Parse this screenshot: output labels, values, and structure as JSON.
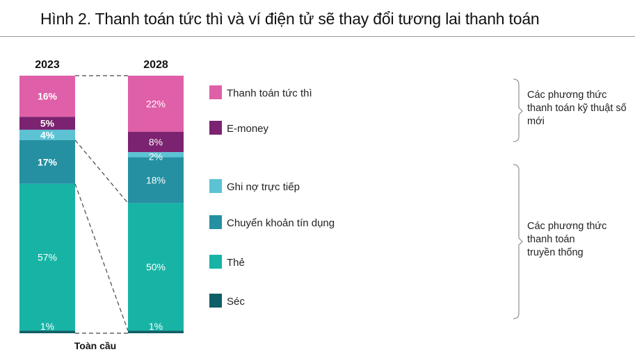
{
  "title": "Hình 2. Thanh toán tức thì và ví điện tử sẽ thay đổi tương lai thanh toán",
  "chart_data": {
    "type": "bar",
    "stacked": true,
    "categories": [
      "2023",
      "2028"
    ],
    "xlabel": "Toàn cầu",
    "series": [
      {
        "name": "Thanh toán tức thì",
        "values": [
          16,
          22
        ],
        "color": "#e05fa9"
      },
      {
        "name": "E-money",
        "values": [
          5,
          8
        ],
        "color": "#7b2270"
      },
      {
        "name": "Ghi nợ trực tiếp",
        "values": [
          4,
          2
        ],
        "color": "#5bc3d4"
      },
      {
        "name": "Chuyển khoản tín dụng",
        "values": [
          17,
          18
        ],
        "color": "#2590a2"
      },
      {
        "name": "Thẻ",
        "values": [
          57,
          50
        ],
        "color": "#17b4a6"
      },
      {
        "name": "Séc",
        "values": [
          1,
          1
        ],
        "color": "#0e5f66"
      }
    ],
    "data_labels": [
      [
        "16%",
        "5%",
        "4%",
        "17%",
        "57%",
        "1%"
      ],
      [
        "22%",
        "8%",
        "2%",
        "18%",
        "50%",
        "1%"
      ]
    ],
    "groups": [
      {
        "label_lines": [
          "Các phương thức",
          "thanh toán kỹ thuật số",
          "mới"
        ],
        "members": [
          "Thanh toán tức thì",
          "E-money"
        ]
      },
      {
        "label_lines": [
          "Các phương thức",
          "thanh toán",
          "truyền thống"
        ],
        "members": [
          "Ghi nợ trực tiếp",
          "Chuyển khoản tín dụng",
          "Thẻ",
          "Séc"
        ]
      }
    ],
    "legend_position": "right",
    "grid": false
  }
}
